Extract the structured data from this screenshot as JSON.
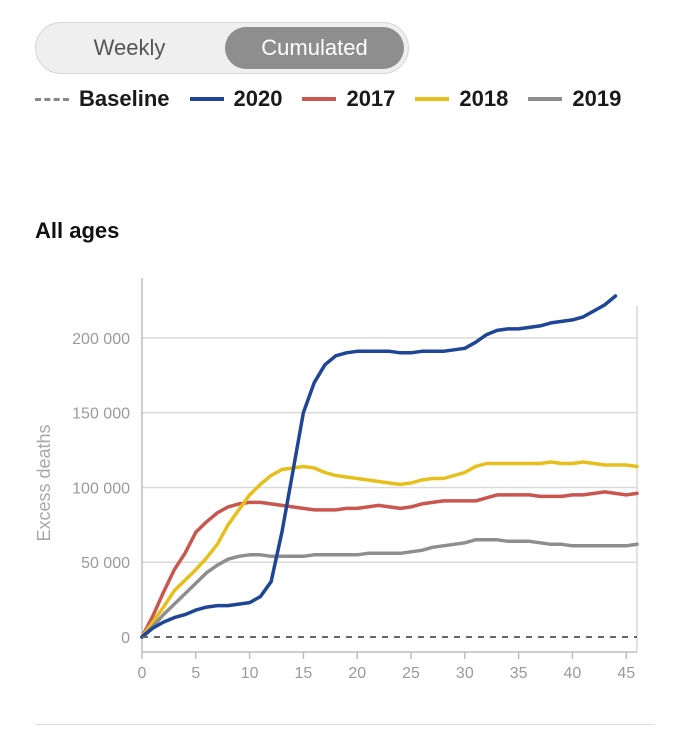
{
  "toggle": {
    "weekly_label": "Weekly",
    "cumulated_label": "Cumulated",
    "selected": "Cumulated"
  },
  "legend": [
    {
      "label": "Baseline",
      "color": "#888888",
      "style": "dashed"
    },
    {
      "label": "2020",
      "color": "#1f4597",
      "style": "solid"
    },
    {
      "label": "2017",
      "color": "#c9574f",
      "style": "solid"
    },
    {
      "label": "2018",
      "color": "#e6bf1b",
      "style": "solid"
    },
    {
      "label": "2019",
      "color": "#8e8e8e",
      "style": "solid"
    }
  ],
  "section_title": "All ages",
  "chart_data": {
    "type": "line",
    "title": "All ages",
    "xlabel": "",
    "ylabel": "Excess deaths",
    "xlim": [
      0,
      46
    ],
    "ylim": [
      -10000,
      240000
    ],
    "xticks": [
      0,
      5,
      10,
      15,
      20,
      25,
      30,
      35,
      40,
      45
    ],
    "yticks": [
      0,
      50000,
      100000,
      150000,
      200000
    ],
    "ytick_labels": [
      "0",
      "50 000",
      "100 000",
      "150 000",
      "200 000"
    ],
    "grid": "horizontal",
    "baseline": {
      "name": "Baseline",
      "value": 0,
      "color": "#666666"
    },
    "series": [
      {
        "name": "2017",
        "color": "#c9574f",
        "x": [
          0,
          1,
          2,
          3,
          4,
          5,
          6,
          7,
          8,
          9,
          10,
          11,
          12,
          13,
          14,
          15,
          16,
          17,
          18,
          19,
          20,
          21,
          22,
          23,
          24,
          25,
          26,
          27,
          28,
          29,
          30,
          31,
          32,
          33,
          34,
          35,
          36,
          37,
          38,
          39,
          40,
          41,
          42,
          43,
          44,
          45,
          46
        ],
        "values": [
          0,
          14000,
          30000,
          45000,
          56000,
          70000,
          77000,
          83000,
          87000,
          89000,
          90000,
          90000,
          89000,
          88000,
          87000,
          86000,
          85000,
          85000,
          85000,
          86000,
          86000,
          87000,
          88000,
          87000,
          86000,
          87000,
          89000,
          90000,
          91000,
          91000,
          91000,
          91000,
          93000,
          95000,
          95000,
          95000,
          95000,
          94000,
          94000,
          94000,
          95000,
          95000,
          96000,
          97000,
          96000,
          95000,
          96000
        ]
      },
      {
        "name": "2018",
        "color": "#e6bf1b",
        "x": [
          0,
          1,
          2,
          3,
          4,
          5,
          6,
          7,
          8,
          9,
          10,
          11,
          12,
          13,
          14,
          15,
          16,
          17,
          18,
          19,
          20,
          21,
          22,
          23,
          24,
          25,
          26,
          27,
          28,
          29,
          30,
          31,
          32,
          33,
          34,
          35,
          36,
          37,
          38,
          39,
          40,
          41,
          42,
          43,
          44,
          45,
          46
        ],
        "values": [
          0,
          10000,
          20000,
          31000,
          38000,
          45000,
          53000,
          62000,
          75000,
          85000,
          95000,
          102000,
          108000,
          112000,
          113000,
          114000,
          113000,
          110000,
          108000,
          107000,
          106000,
          105000,
          104000,
          103000,
          102000,
          103000,
          105000,
          106000,
          106000,
          108000,
          110000,
          114000,
          116000,
          116000,
          116000,
          116000,
          116000,
          116000,
          117000,
          116000,
          116000,
          117000,
          116000,
          115000,
          115000,
          115000,
          114000
        ]
      },
      {
        "name": "2019",
        "color": "#8e8e8e",
        "x": [
          0,
          1,
          2,
          3,
          4,
          5,
          6,
          7,
          8,
          9,
          10,
          11,
          12,
          13,
          14,
          15,
          16,
          17,
          18,
          19,
          20,
          21,
          22,
          23,
          24,
          25,
          26,
          27,
          28,
          29,
          30,
          31,
          32,
          33,
          34,
          35,
          36,
          37,
          38,
          39,
          40,
          41,
          42,
          43,
          44,
          45,
          46
        ],
        "values": [
          0,
          7000,
          15000,
          22000,
          29000,
          36000,
          43000,
          48000,
          52000,
          54000,
          55000,
          55000,
          54000,
          54000,
          54000,
          54000,
          55000,
          55000,
          55000,
          55000,
          55000,
          56000,
          56000,
          56000,
          56000,
          57000,
          58000,
          60000,
          61000,
          62000,
          63000,
          65000,
          65000,
          65000,
          64000,
          64000,
          64000,
          63000,
          62000,
          62000,
          61000,
          61000,
          61000,
          61000,
          61000,
          61000,
          62000
        ]
      },
      {
        "name": "2020",
        "color": "#1f4597",
        "x": [
          0,
          1,
          2,
          3,
          4,
          5,
          6,
          7,
          8,
          9,
          10,
          11,
          12,
          13,
          14,
          15,
          16,
          17,
          18,
          19,
          20,
          21,
          22,
          23,
          24,
          25,
          26,
          27,
          28,
          29,
          30,
          31,
          32,
          33,
          34,
          35,
          36,
          37,
          38,
          39,
          40,
          41,
          42,
          43,
          44
        ],
        "values": [
          0,
          6000,
          10000,
          13000,
          15000,
          18000,
          20000,
          21000,
          21000,
          22000,
          23000,
          27000,
          37000,
          70000,
          110000,
          150000,
          170000,
          182000,
          188000,
          190000,
          191000,
          191000,
          191000,
          191000,
          190000,
          190000,
          191000,
          191000,
          191000,
          192000,
          193000,
          197000,
          202000,
          205000,
          206000,
          206000,
          207000,
          208000,
          210000,
          211000,
          212000,
          214000,
          218000,
          222000,
          228000
        ]
      }
    ]
  }
}
